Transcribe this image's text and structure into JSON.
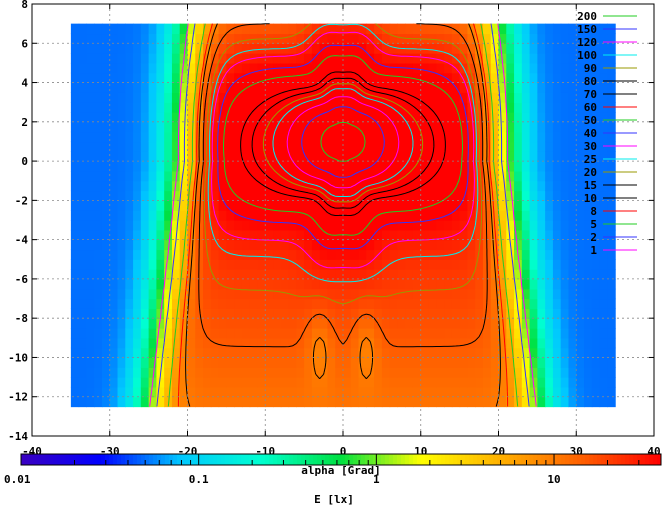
{
  "chart_data": {
    "type": "heatmap",
    "subtype": "contour-map",
    "xlabel": "alpha [Grad]",
    "xlim": [
      -40,
      40
    ],
    "ylim": [
      -14,
      8
    ],
    "x_ticks": [
      -40,
      -30,
      -20,
      -10,
      0,
      10,
      20,
      30,
      40
    ],
    "y_ticks": [
      -14,
      -12,
      -10,
      -8,
      -6,
      -4,
      -2,
      0,
      2,
      4,
      6,
      8
    ],
    "data_extent": {
      "x": [
        -35,
        35
      ],
      "y": [
        -12.5,
        7
      ]
    },
    "peak": {
      "x": 0,
      "y": 1,
      "value": 200
    },
    "grid": true,
    "legend_position": "top-right",
    "contours": [
      {
        "level": 200,
        "color": "#22cc22"
      },
      {
        "level": 150,
        "color": "#3333ff"
      },
      {
        "level": 120,
        "color": "#ff00ff"
      },
      {
        "level": 100,
        "color": "#00eeee"
      },
      {
        "level": 90,
        "color": "#999900"
      },
      {
        "level": 80,
        "color": "#000000"
      },
      {
        "level": 70,
        "color": "#000000"
      },
      {
        "level": 60,
        "color": "#ff0000"
      },
      {
        "level": 50,
        "color": "#22cc22"
      },
      {
        "level": 40,
        "color": "#3333ff"
      },
      {
        "level": 30,
        "color": "#ff00ff"
      },
      {
        "level": 25,
        "color": "#00eeee"
      },
      {
        "level": 20,
        "color": "#999900"
      },
      {
        "level": 15,
        "color": "#000000"
      },
      {
        "level": 10,
        "color": "#000000"
      },
      {
        "level": 8,
        "color": "#ff0000"
      },
      {
        "level": 5,
        "color": "#22cc22"
      },
      {
        "level": 2,
        "color": "#3333ff"
      },
      {
        "level": 1,
        "color": "#ff00ff"
      }
    ],
    "colorbar": {
      "label": "E [lx]",
      "scale": "log",
      "range": [
        0.01,
        40
      ],
      "tick_labels": [
        "0.01",
        "0.1",
        "1",
        "10"
      ],
      "tick_values": [
        0.01,
        0.1,
        1,
        10
      ],
      "colors": [
        "#3a00c0",
        "#0000ff",
        "#00c8ff",
        "#00ffd0",
        "#00e040",
        "#ffff00",
        "#ffb000",
        "#ff6000",
        "#ff0000"
      ]
    }
  }
}
